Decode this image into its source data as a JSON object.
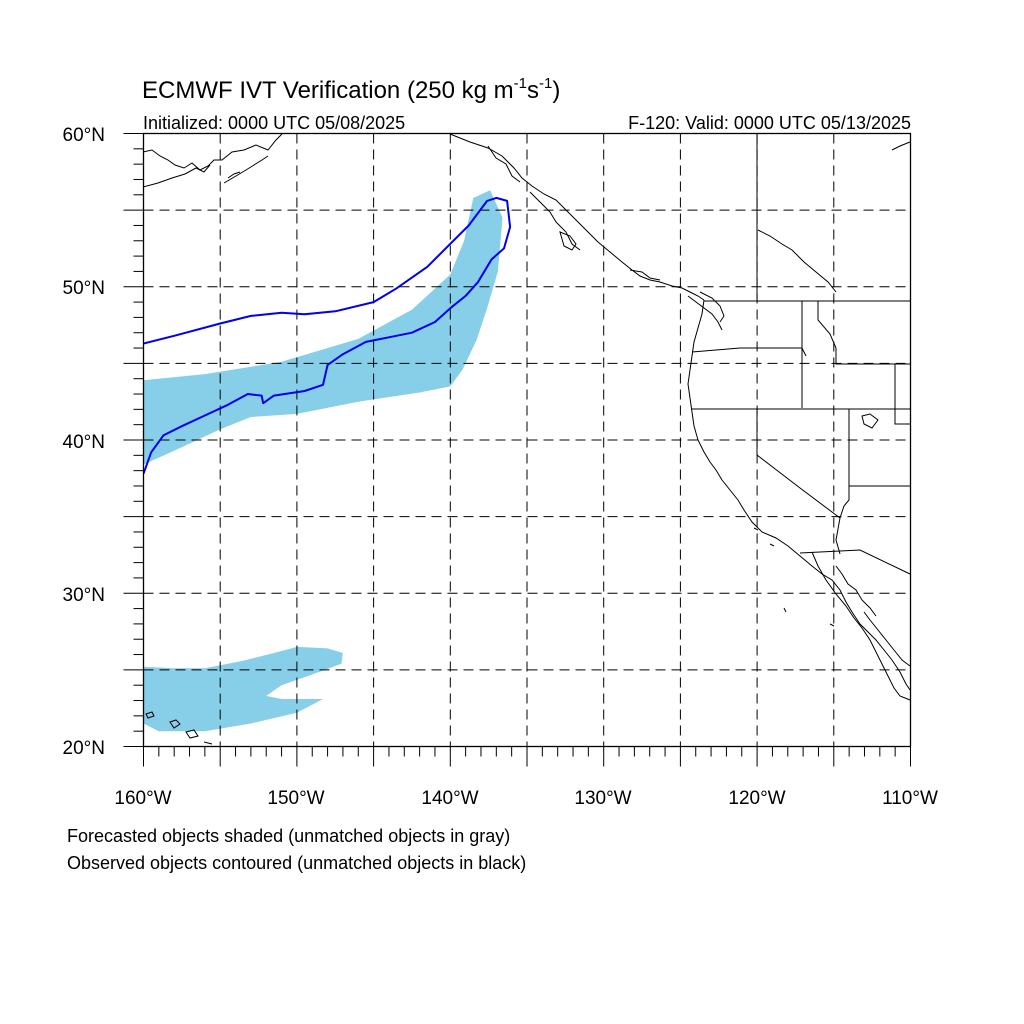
{
  "title": {
    "prefix": "ECMWF IVT Verification (250 kg m",
    "sup1": "-1",
    "mid": "s",
    "sup2": "-1",
    "suffix": ")"
  },
  "subtitle_left": "Initialized: 0000 UTC 05/08/2025",
  "subtitle_right": "F-120: Valid: 0000 UTC 05/13/2025",
  "lat_labels": [
    "20°N",
    "30°N",
    "40°N",
    "50°N",
    "60°N"
  ],
  "lon_labels": [
    "160°W",
    "150°W",
    "140°W",
    "130°W",
    "120°W",
    "110°W"
  ],
  "map": {
    "lon_range": [
      -160,
      -110
    ],
    "lat_range": [
      20,
      60
    ],
    "grid_spacing_deg": 5,
    "grid_style": "dashed",
    "forecast_fill_color": "#87CEE8",
    "observed_contour_color": "#0000ee",
    "coast_color": "#000000"
  },
  "footnotes": [
    "Forecasted objects shaded (unmatched objects in gray)",
    "Observed objects contoured (unmatched objects in black)"
  ],
  "chart_data": {
    "type": "map",
    "forecast_objects": [
      {
        "id": "fc-1",
        "matched": true,
        "lonlat": [
          [
            -160,
            43.9
          ],
          [
            -156,
            44.3
          ],
          [
            -151,
            45.1
          ],
          [
            -146,
            46.6
          ],
          [
            -142.5,
            48.5
          ],
          [
            -140,
            50.8
          ],
          [
            -139.1,
            53
          ],
          [
            -138.5,
            55.8
          ],
          [
            -137.4,
            56.3
          ],
          [
            -136.6,
            54.5
          ],
          [
            -136.9,
            51
          ],
          [
            -137.6,
            48.6
          ],
          [
            -138.3,
            46.5
          ],
          [
            -139.2,
            44.6
          ],
          [
            -140,
            43.5
          ],
          [
            -142,
            43.1
          ],
          [
            -146,
            42.5
          ],
          [
            -150,
            41.7
          ],
          [
            -153,
            41.5
          ],
          [
            -155,
            40.7
          ],
          [
            -158,
            39.3
          ],
          [
            -160,
            38.4
          ]
        ]
      },
      {
        "id": "fc-2",
        "matched": true,
        "lonlat": [
          [
            -160,
            25.2
          ],
          [
            -158,
            25.1
          ],
          [
            -156,
            25.1
          ],
          [
            -153.5,
            25.6
          ],
          [
            -151.5,
            26.1
          ],
          [
            -150,
            26.5
          ],
          [
            -148,
            26.4
          ],
          [
            -147,
            26.1
          ],
          [
            -147.1,
            25.4
          ],
          [
            -149,
            24.7
          ],
          [
            -151,
            24
          ],
          [
            -152,
            23.3
          ],
          [
            -151,
            23.1
          ],
          [
            -148.3,
            23.1
          ],
          [
            -150,
            22.2
          ],
          [
            -153,
            21.5
          ],
          [
            -156,
            21
          ],
          [
            -159,
            21
          ],
          [
            -160,
            21.5
          ]
        ]
      }
    ],
    "observed_contours": [
      {
        "id": "obs-1",
        "matched": true,
        "lonlat": [
          [
            -160,
            46.3
          ],
          [
            -158,
            46.8
          ],
          [
            -155,
            47.6
          ],
          [
            -153,
            48.1
          ],
          [
            -151,
            48.3
          ],
          [
            -149.5,
            48.2
          ],
          [
            -147.5,
            48.4
          ],
          [
            -145,
            49
          ],
          [
            -143.5,
            49.9
          ],
          [
            -141.5,
            51.3
          ],
          [
            -140,
            52.8
          ],
          [
            -138.8,
            54
          ],
          [
            -137.6,
            55.6
          ],
          [
            -137,
            55.8
          ],
          [
            -136.3,
            55.6
          ],
          [
            -136.1,
            53.9
          ],
          [
            -136.5,
            52.5
          ],
          [
            -137.3,
            51.8
          ],
          [
            -138.2,
            50.3
          ],
          [
            -139,
            49.4
          ],
          [
            -140,
            48.6
          ],
          [
            -141,
            47.7
          ],
          [
            -142.5,
            47
          ],
          [
            -144,
            46.7
          ],
          [
            -145.5,
            46.4
          ],
          [
            -147,
            45.6
          ],
          [
            -148,
            44.9
          ],
          [
            -148.3,
            43.6
          ],
          [
            -149.5,
            43.2
          ],
          [
            -151.5,
            42.9
          ],
          [
            -152.2,
            42.4
          ],
          [
            -152.3,
            42.9
          ],
          [
            -153.2,
            43
          ],
          [
            -154.5,
            42.3
          ],
          [
            -156,
            41.6
          ],
          [
            -157.5,
            40.9
          ],
          [
            -158.7,
            40.3
          ],
          [
            -159.5,
            39.2
          ],
          [
            -160,
            37.8
          ]
        ]
      }
    ],
    "xlim": [
      -160,
      -110
    ],
    "ylim": [
      20,
      60
    ],
    "grid": true
  }
}
